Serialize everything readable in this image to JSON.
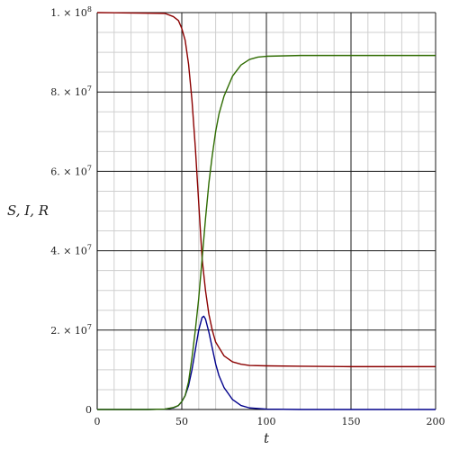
{
  "chart_data": {
    "type": "line",
    "xlabel": "t",
    "ylabel": "S, I, R",
    "xlim": [
      0,
      200
    ],
    "ylim": [
      0,
      100000000
    ],
    "grid": true,
    "x_ticks": [
      {
        "value": 0,
        "label": "0"
      },
      {
        "value": 50,
        "label": "50"
      },
      {
        "value": 100,
        "label": "100"
      },
      {
        "value": 150,
        "label": "150"
      },
      {
        "value": 200,
        "label": "200"
      }
    ],
    "y_ticks": [
      {
        "value": 0,
        "label": "0"
      },
      {
        "value": 20000000,
        "label": "2. × 10",
        "exp": "7"
      },
      {
        "value": 40000000,
        "label": "4. × 10",
        "exp": "7"
      },
      {
        "value": 60000000,
        "label": "6. × 10",
        "exp": "7"
      },
      {
        "value": 80000000,
        "label": "8. × 10",
        "exp": "7"
      },
      {
        "value": 100000000,
        "label": "1. × 10",
        "exp": "8"
      }
    ],
    "series": [
      {
        "color": "#8b0000",
        "points": [
          [
            0,
            100000000
          ],
          [
            40,
            99800000
          ],
          [
            45,
            99000000
          ],
          [
            48,
            98000000
          ],
          [
            50,
            96000000
          ],
          [
            52,
            93000000
          ],
          [
            54,
            87000000
          ],
          [
            56,
            78000000
          ],
          [
            58,
            66000000
          ],
          [
            60,
            52000000
          ],
          [
            62,
            38000000
          ],
          [
            64,
            30000000
          ],
          [
            66,
            24000000
          ],
          [
            68,
            20000000
          ],
          [
            70,
            17000000
          ],
          [
            75,
            13500000
          ],
          [
            80,
            12000000
          ],
          [
            85,
            11400000
          ],
          [
            90,
            11100000
          ],
          [
            100,
            11000000
          ],
          [
            120,
            10900000
          ],
          [
            150,
            10800000
          ],
          [
            200,
            10800000
          ]
        ]
      },
      {
        "color": "#00008b",
        "points": [
          [
            0,
            0
          ],
          [
            30,
            0
          ],
          [
            40,
            100000
          ],
          [
            45,
            400000
          ],
          [
            48,
            1000000
          ],
          [
            50,
            2000000
          ],
          [
            52,
            3500000
          ],
          [
            54,
            6000000
          ],
          [
            56,
            10000000
          ],
          [
            58,
            15000000
          ],
          [
            60,
            20000000
          ],
          [
            62,
            23200000
          ],
          [
            63,
            23500000
          ],
          [
            64,
            22800000
          ],
          [
            66,
            19500000
          ],
          [
            68,
            15500000
          ],
          [
            70,
            11500000
          ],
          [
            72,
            8500000
          ],
          [
            75,
            5500000
          ],
          [
            80,
            2500000
          ],
          [
            85,
            1000000
          ],
          [
            90,
            400000
          ],
          [
            100,
            100000
          ],
          [
            120,
            0
          ],
          [
            200,
            0
          ]
        ]
      },
      {
        "color": "#2e6b00",
        "points": [
          [
            0,
            0
          ],
          [
            30,
            0
          ],
          [
            40,
            100000
          ],
          [
            45,
            500000
          ],
          [
            48,
            1000000
          ],
          [
            50,
            2000000
          ],
          [
            52,
            3500000
          ],
          [
            54,
            7000000
          ],
          [
            56,
            13000000
          ],
          [
            58,
            20000000
          ],
          [
            60,
            28000000
          ],
          [
            62,
            38000000
          ],
          [
            64,
            48000000
          ],
          [
            66,
            57000000
          ],
          [
            68,
            64000000
          ],
          [
            70,
            70000000
          ],
          [
            72,
            74500000
          ],
          [
            75,
            79000000
          ],
          [
            80,
            84000000
          ],
          [
            85,
            86800000
          ],
          [
            90,
            88200000
          ],
          [
            95,
            88800000
          ],
          [
            100,
            89000000
          ],
          [
            120,
            89200000
          ],
          [
            150,
            89200000
          ],
          [
            200,
            89200000
          ]
        ]
      }
    ]
  }
}
